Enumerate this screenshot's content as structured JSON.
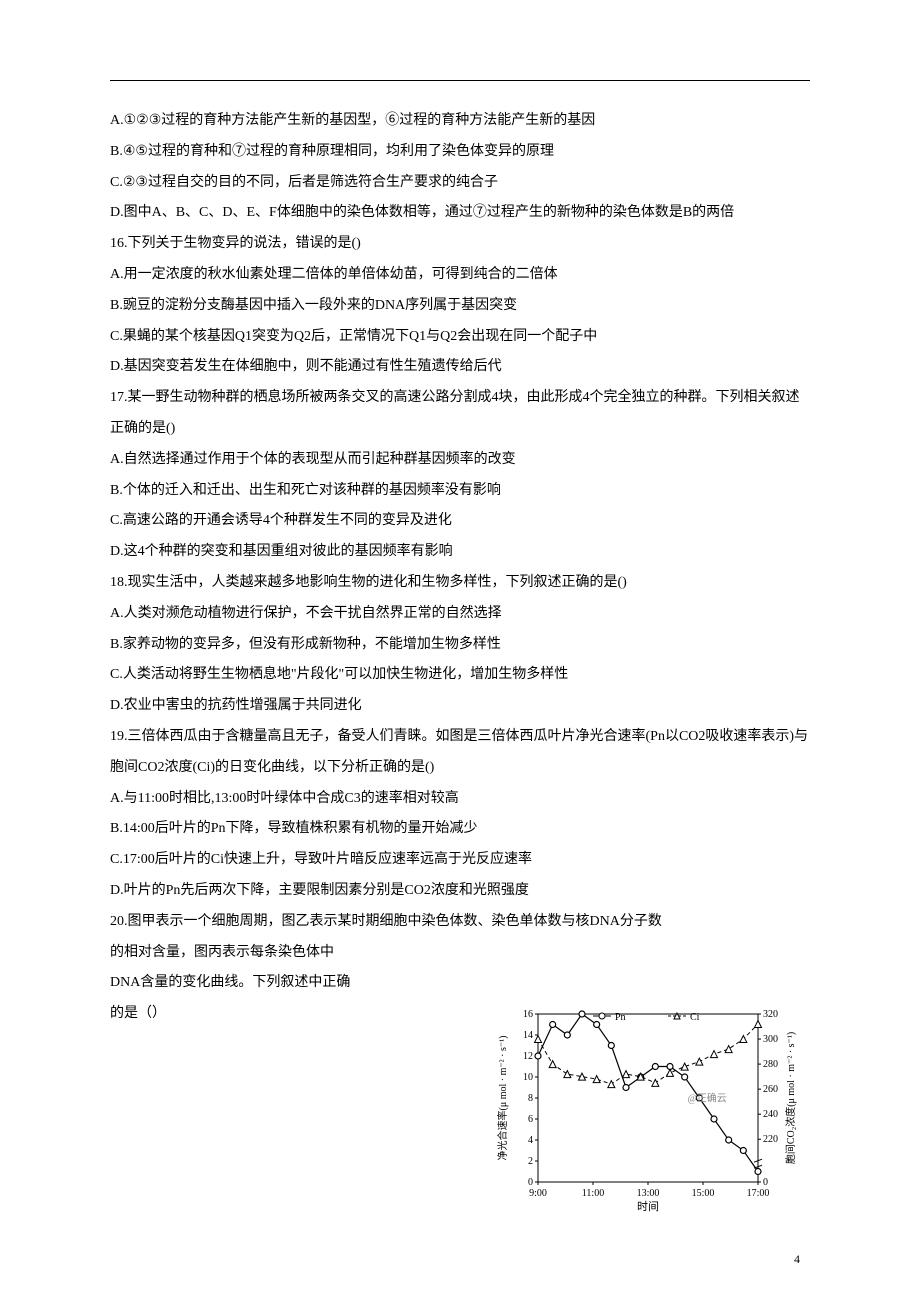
{
  "lines": {
    "l1": "A.①②③过程的育种方法能产生新的基因型，⑥过程的育种方法能产生新的基因",
    "l2": "B.④⑤过程的育种和⑦过程的育种原理相同，均利用了染色体变异的原理",
    "l3": "C.②③过程自交的目的不同，后者是筛选符合生产要求的纯合子",
    "l4": "D.图中A、B、C、D、E、F体细胞中的染色体数相等，通过⑦过程产生的新物种的染色体数是B的两倍",
    "l5": "16.下列关于生物变异的说法，错误的是()",
    "l6": "A.用一定浓度的秋水仙素处理二倍体的单倍体幼苗，可得到纯合的二倍体",
    "l7": "B.豌豆的淀粉分支酶基因中插入一段外来的DNA序列属于基因突变",
    "l8": "C.果蝇的某个核基因Q1突变为Q2后，正常情况下Q1与Q2会出现在同一个配子中",
    "l9": "D.基因突变若发生在体细胞中，则不能通过有性生殖遗传给后代",
    "l10": "17.某一野生动物种群的栖息场所被两条交叉的高速公路分割成4块，由此形成4个完全独立的种群。下列相关叙述正确的是()",
    "l11": "A.自然选择通过作用于个体的表现型从而引起种群基因频率的改变",
    "l12": "B.个体的迁入和迁出、出生和死亡对该种群的基因频率没有影响",
    "l13": "C.高速公路的开通会诱导4个种群发生不同的变异及进化",
    "l14": "D.这4个种群的突变和基因重组对彼此的基因频率有影响",
    "l15": "18.现实生活中，人类越来越多地影响生物的进化和生物多样性，下列叙述正确的是()",
    "l16": "A.人类对濒危动植物进行保护，不会干扰自然界正常的自然选择",
    "l17": "B.家养动物的变异多，但没有形成新物种，不能增加生物多样性",
    "l18": "C.人类活动将野生生物栖息地\"片段化\"可以加快生物进化，增加生物多样性",
    "l19": "D.农业中害虫的抗药性增强属于共同进化",
    "l20": "19.三倍体西瓜由于含糖量高且无子，备受人们青睐。如图是三倍体西瓜叶片净光合速率(Pn以CO2吸收速率表示)与胞间CO2浓度(Ci)的日变化曲线，以下分析正确的是()",
    "l21": "A.与11:00时相比,13:00时叶绿体中合成C3的速率相对较高",
    "l22": "B.14:00后叶片的Pn下降，导致植株积累有机物的量开始减少",
    "l23": "C.17:00后叶片的Ci快速上升，导致叶片暗反应速率远高于光反应速率",
    "l24": "D.叶片的Pn先后两次下降，主要限制因素分别是CO2浓度和光照强度",
    "l25": "20.图甲表示一个细胞周期，图乙表示某时期细胞中染色体数、染色单体数与核DNA分子数",
    "l26": "的相对含量，图丙表示每条染色体中",
    "l27": "DNA含量的变化曲线。下列叙述中正确",
    "l28": "的是（）"
  },
  "page_number": "4",
  "chart": {
    "legend_pn": "Pn",
    "legend_ci": "Ci",
    "watermark": "@正确云",
    "xlabel": "时间",
    "ylabel_left": "净光合速率(μ mol · m⁻² · s⁻¹)",
    "ylabel_right": "胞间CO₂浓度(μ mol · m⁻² · s⁻¹)",
    "xticks": [
      "9:00",
      "11:00",
      "13:00",
      "15:00",
      "17:00"
    ],
    "left_yticks": [
      0,
      2,
      4,
      6,
      8,
      10,
      12,
      14,
      16
    ],
    "right_yticks": [
      0,
      220,
      240,
      260,
      280,
      300,
      320
    ],
    "left_ylim": [
      0,
      16
    ],
    "right_ylim": [
      0,
      320
    ],
    "pn_series": [
      12,
      15,
      14,
      16,
      15,
      13,
      9,
      10,
      11,
      11,
      10,
      8,
      6,
      4,
      3,
      1
    ],
    "ci_series": [
      300,
      280,
      272,
      270,
      268,
      264,
      272,
      270,
      265,
      273,
      278,
      282,
      288,
      292,
      300,
      312
    ],
    "pn_color": "#000000",
    "ci_color": "#000000",
    "grid_color": "#000000",
    "background_color": "#ffffff",
    "axis_fontsize": 10,
    "label_fontsize": 11
  }
}
